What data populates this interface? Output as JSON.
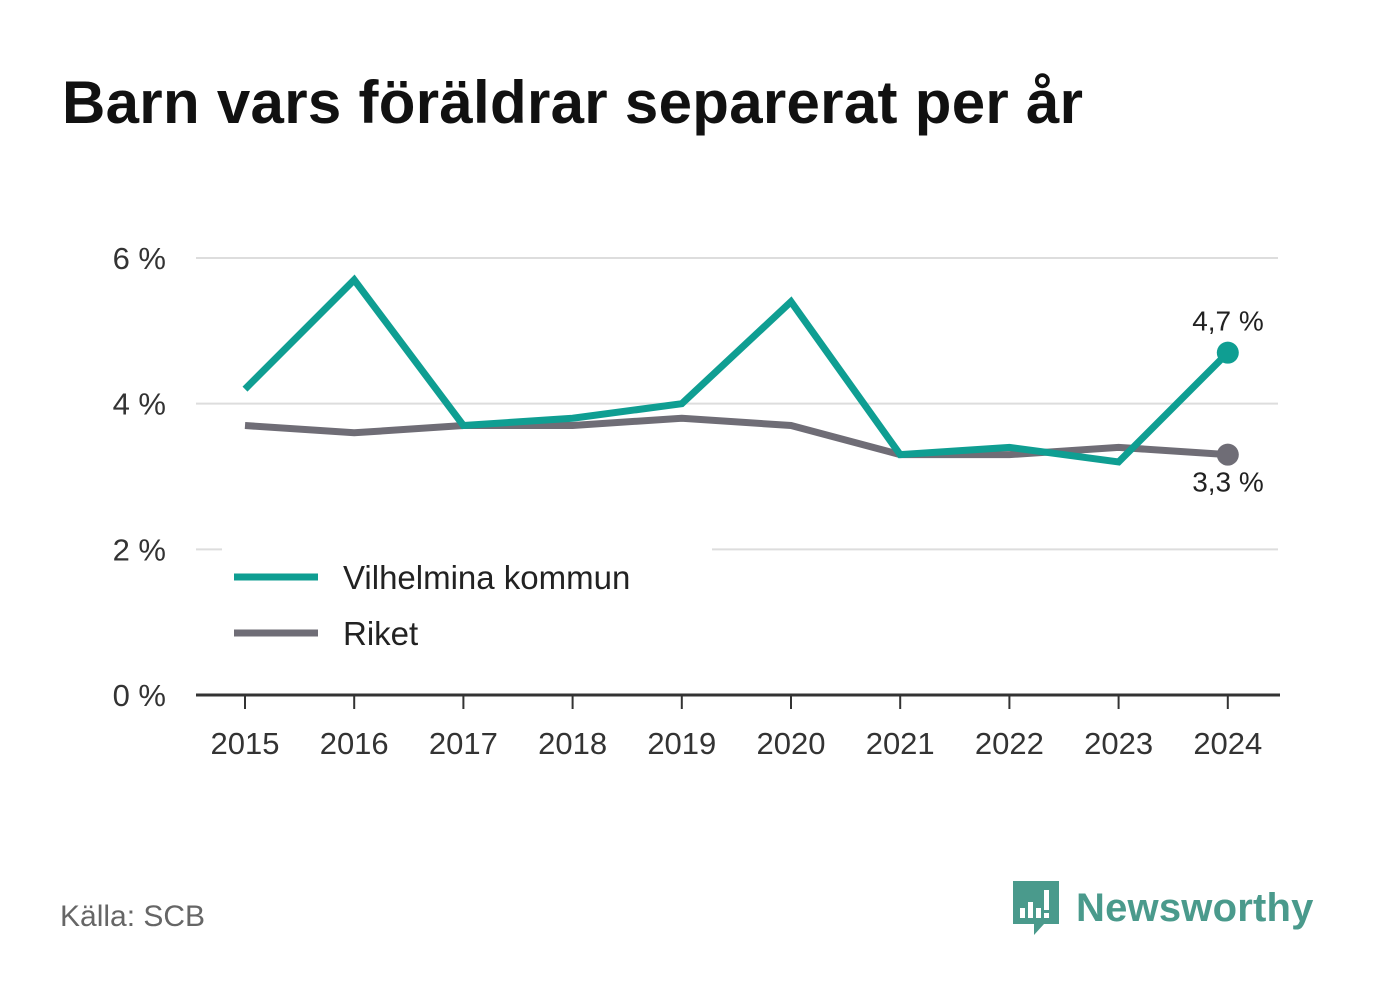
{
  "title": "Barn vars föräldrar separerat per år",
  "source": "Källa: SCB",
  "brand": {
    "name": "Newsworthy",
    "color": "#4a9a8c",
    "icon": "bar-chart-speech-bubble-icon"
  },
  "colors": {
    "vilhelmina": "#0f9e92",
    "riket": "#6f6d76",
    "grid": "#dddddd",
    "axis": "#333333"
  },
  "chart_data": {
    "type": "line",
    "categories": [
      "2015",
      "2016",
      "2017",
      "2018",
      "2019",
      "2020",
      "2021",
      "2022",
      "2023",
      "2024"
    ],
    "series": [
      {
        "name": "Vilhelmina kommun",
        "values": [
          4.2,
          5.7,
          3.7,
          3.8,
          4.0,
          5.4,
          3.3,
          3.4,
          3.2,
          4.7
        ],
        "end_label": "4,7 %"
      },
      {
        "name": "Riket",
        "values": [
          3.7,
          3.6,
          3.7,
          3.7,
          3.8,
          3.7,
          3.3,
          3.3,
          3.4,
          3.3
        ],
        "end_label": "3,3 %"
      }
    ],
    "yticks": [
      {
        "value": 0,
        "label": "0 %"
      },
      {
        "value": 2,
        "label": "2 %"
      },
      {
        "value": 4,
        "label": "4 %"
      },
      {
        "value": 6,
        "label": "6 %"
      }
    ],
    "ylim": [
      0,
      6
    ],
    "grid": true,
    "legend_position": "bottom-left"
  }
}
